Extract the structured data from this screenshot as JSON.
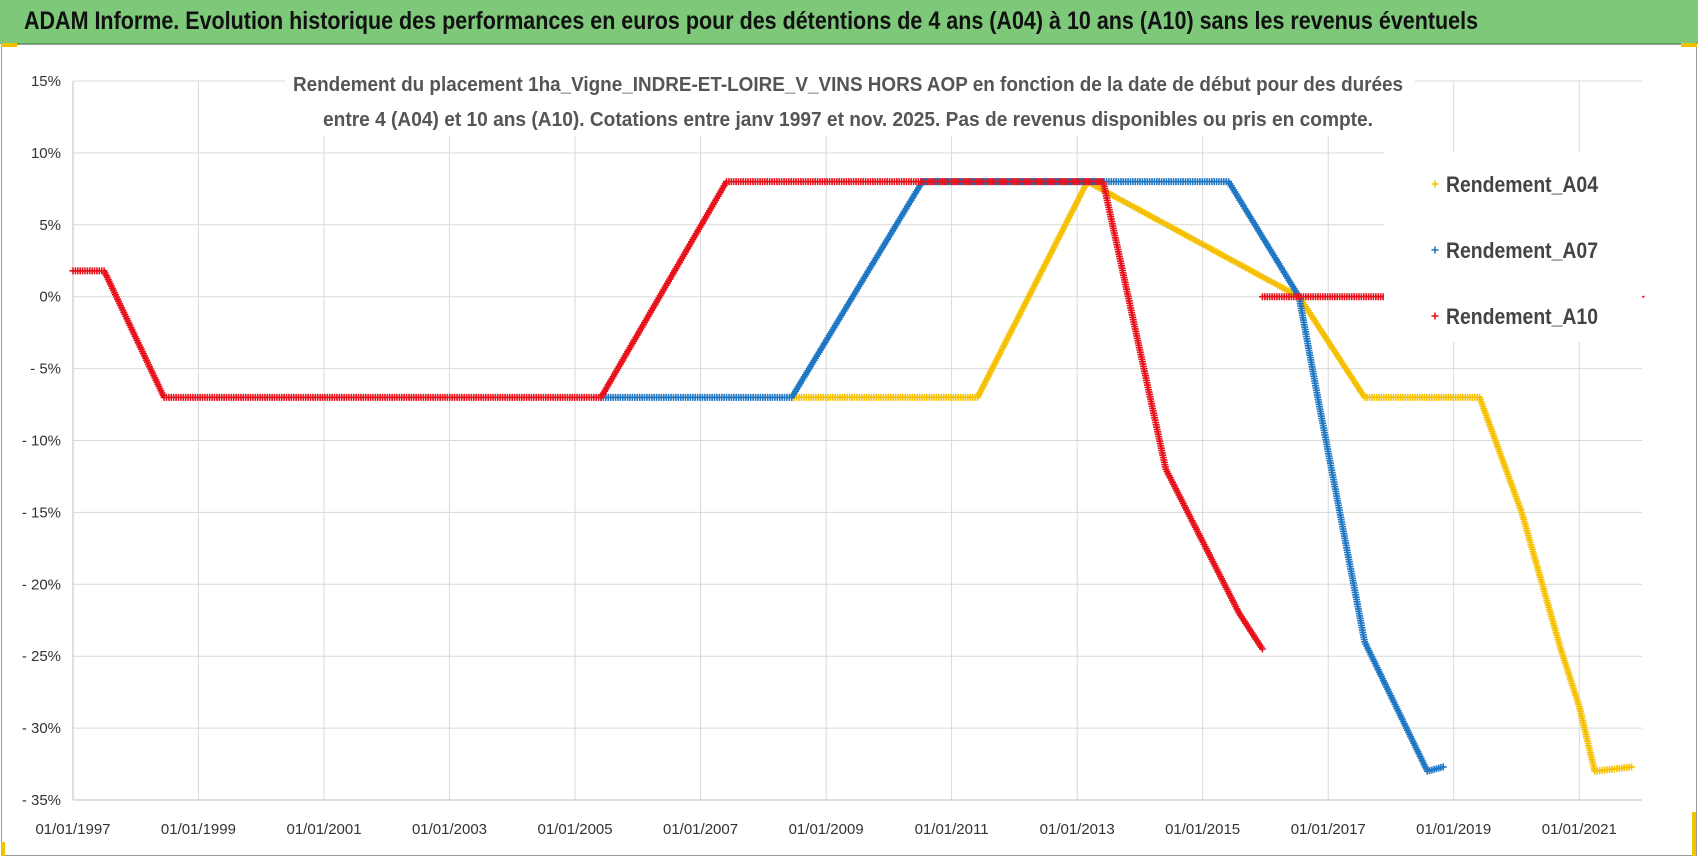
{
  "banner": {
    "title": "ADAM Informe. Evolution historique des performances en euros pour des détentions de 4 ans (A04) à 10 ans (A10) sans les revenus éventuels"
  },
  "colors": {
    "banner_bg": "#7ec87a",
    "a04": "#f5c000",
    "a07": "#1f77c4",
    "a10": "#e8101a",
    "grid": "#d9d9d9"
  },
  "chart_data": {
    "type": "scatter",
    "subtitle_lines": [
      "Rendement du placement 1ha_Vigne_INDRE-ET-LOIRE_V_VINS HORS AOP en fonction de la date de début pour des durées",
      "entre 4 (A04) et 10 ans (A10). Cotations entre janv 1997 et nov. 2025. Pas de revenus disponibles ou pris en compte."
    ],
    "xlim": [
      "1997-01-01",
      "2022-01-01"
    ],
    "ylim": [
      -35,
      15
    ],
    "x_ticks": [
      "01/01/1997",
      "01/01/1999",
      "01/01/2001",
      "01/01/2003",
      "01/01/2005",
      "01/01/2007",
      "01/01/2009",
      "01/01/2011",
      "01/01/2013",
      "01/01/2015",
      "01/01/2017",
      "01/01/2019",
      "01/01/2021"
    ],
    "y_ticks": [
      {
        "value": 15,
        "label": "15%"
      },
      {
        "value": 10,
        "label": "10%"
      },
      {
        "value": 5,
        "label": "5%"
      },
      {
        "value": 0,
        "label": "0%"
      },
      {
        "value": -5,
        "label": "- 5%"
      },
      {
        "value": -10,
        "label": "- 10%"
      },
      {
        "value": -15,
        "label": "- 15%"
      },
      {
        "value": -20,
        "label": "- 20%"
      },
      {
        "value": -25,
        "label": "- 25%"
      },
      {
        "value": -30,
        "label": "- 30%"
      },
      {
        "value": -35,
        "label": "- 35%"
      }
    ],
    "grid": true,
    "legend_position": "right",
    "series": [
      {
        "name": "Rendement_A04",
        "color": "#f5c000",
        "points": [
          [
            "2008-06-15",
            -7.0
          ],
          [
            "2011-06-01",
            -7.0
          ],
          [
            "2013-03-01",
            8.0
          ],
          [
            "2016-07-15",
            0.0
          ],
          [
            "2017-08-01",
            -7.0
          ],
          [
            "2019-06-01",
            -7.0
          ],
          [
            "2020-02-01",
            -15.0
          ],
          [
            "2020-09-15",
            -24.5
          ],
          [
            "2021-01-01",
            -28.5
          ],
          [
            "2021-04-01",
            -33.0
          ],
          [
            "2021-11-01",
            -32.7
          ]
        ]
      },
      {
        "name": "Rendement_A07",
        "color": "#1f77c4",
        "points": [
          [
            "2005-06-01",
            -7.0
          ],
          [
            "2008-06-15",
            -7.0
          ],
          [
            "2010-07-15",
            8.0
          ],
          [
            "2015-06-01",
            8.0
          ],
          [
            "2016-07-15",
            0.0
          ],
          [
            "2016-11-01",
            -7.0
          ],
          [
            "2017-08-01",
            -24.0
          ],
          [
            "2018-08-01",
            -33.0
          ],
          [
            "2018-11-01",
            -32.7
          ]
        ]
      },
      {
        "name": "Rendement_A10",
        "color": "#e8101a",
        "points": [
          [
            "1997-01-01",
            1.8
          ],
          [
            "1997-07-01",
            1.8
          ],
          [
            "1998-06-15",
            -7.0
          ],
          [
            "2005-06-01",
            -7.0
          ],
          [
            "2007-06-01",
            8.0
          ],
          [
            "2013-06-01",
            8.0
          ],
          [
            "2014-06-01",
            -12.0
          ],
          [
            "2015-08-01",
            -22.0
          ],
          [
            "2015-12-15",
            -24.5
          ]
        ],
        "extra_segment": [
          [
            "2015-12-15",
            0.0
          ],
          [
            "2018-06-01",
            0.0
          ]
        ],
        "extra_point": [
          "2022-01-01",
          0.0
        ]
      }
    ]
  }
}
